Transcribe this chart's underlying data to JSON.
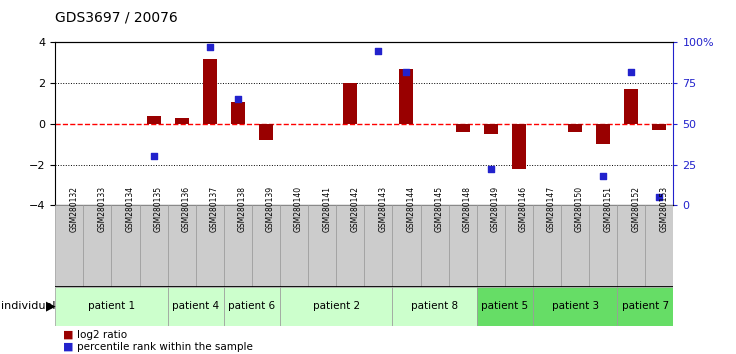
{
  "title": "GDS3697 / 20076",
  "samples": [
    "GSM280132",
    "GSM280133",
    "GSM280134",
    "GSM280135",
    "GSM280136",
    "GSM280137",
    "GSM280138",
    "GSM280139",
    "GSM280140",
    "GSM280141",
    "GSM280142",
    "GSM280143",
    "GSM280144",
    "GSM280145",
    "GSM280148",
    "GSM280149",
    "GSM280146",
    "GSM280147",
    "GSM280150",
    "GSM280151",
    "GSM280152",
    "GSM280153"
  ],
  "log2_ratio": [
    0.0,
    0.0,
    0.0,
    0.4,
    0.3,
    3.2,
    1.1,
    -0.8,
    0.0,
    0.0,
    2.0,
    0.0,
    2.7,
    0.0,
    -0.4,
    -0.5,
    -2.2,
    0.0,
    -0.4,
    -1.0,
    1.7,
    -0.3
  ],
  "percentile_pct": [
    null,
    null,
    null,
    null,
    null,
    null,
    65.0,
    null,
    null,
    null,
    null,
    95.0,
    82.0,
    null,
    null,
    22.0,
    null,
    null,
    null,
    18.0,
    82.0,
    5.0
  ],
  "percentile_shown": [
    null,
    null,
    null,
    30.0,
    null,
    97.0,
    65.0,
    null,
    null,
    null,
    null,
    95.0,
    82.0,
    null,
    null,
    22.0,
    null,
    null,
    null,
    18.0,
    82.0,
    5.0
  ],
  "patient_groups": [
    {
      "label": "patient 1",
      "start": 0,
      "end": 4,
      "color": "#ccffcc"
    },
    {
      "label": "patient 4",
      "start": 4,
      "end": 6,
      "color": "#ccffcc"
    },
    {
      "label": "patient 6",
      "start": 6,
      "end": 8,
      "color": "#ccffcc"
    },
    {
      "label": "patient 2",
      "start": 8,
      "end": 12,
      "color": "#ccffcc"
    },
    {
      "label": "patient 8",
      "start": 12,
      "end": 15,
      "color": "#ccffcc"
    },
    {
      "label": "patient 5",
      "start": 15,
      "end": 17,
      "color": "#66dd66"
    },
    {
      "label": "patient 3",
      "start": 17,
      "end": 20,
      "color": "#66dd66"
    },
    {
      "label": "patient 7",
      "start": 20,
      "end": 22,
      "color": "#66dd66"
    }
  ],
  "bar_color": "#990000",
  "dot_color": "#2222cc",
  "zero_line_color": "#ff0000",
  "dotted_line_color": "#000000",
  "ylim_left": [
    -4,
    4
  ],
  "ylim_right": [
    0,
    100
  ],
  "yticks_left": [
    -4,
    -2,
    0,
    2,
    4
  ],
  "yticks_right": [
    0,
    25,
    50,
    75,
    100
  ],
  "legend_items": [
    {
      "label": "log2 ratio",
      "color": "#990000"
    },
    {
      "label": "percentile rank within the sample",
      "color": "#2222cc"
    }
  ],
  "sample_area_color": "#cccccc",
  "bar_width": 0.5
}
